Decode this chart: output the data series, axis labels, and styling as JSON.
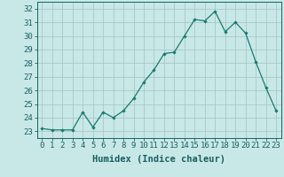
{
  "x": [
    0,
    1,
    2,
    3,
    4,
    5,
    6,
    7,
    8,
    9,
    10,
    11,
    12,
    13,
    14,
    15,
    16,
    17,
    18,
    19,
    20,
    21,
    22,
    23
  ],
  "y": [
    23.2,
    23.1,
    23.1,
    23.1,
    24.4,
    23.3,
    24.4,
    24.0,
    24.5,
    25.4,
    26.6,
    27.5,
    28.7,
    28.8,
    30.0,
    31.2,
    31.1,
    31.8,
    30.3,
    31.0,
    30.2,
    28.1,
    26.2,
    24.5
  ],
  "line_color": "#1a7a6e",
  "marker": "D",
  "marker_size": 2.2,
  "bg_color": "#c8e8e8",
  "grid_color": "#a8c8c8",
  "xlabel": "Humidex (Indice chaleur)",
  "ylim": [
    22.5,
    32.5
  ],
  "xlim": [
    -0.5,
    23.5
  ],
  "yticks": [
    23,
    24,
    25,
    26,
    27,
    28,
    29,
    30,
    31,
    32
  ],
  "xticks": [
    0,
    1,
    2,
    3,
    4,
    5,
    6,
    7,
    8,
    9,
    10,
    11,
    12,
    13,
    14,
    15,
    16,
    17,
    18,
    19,
    20,
    21,
    22,
    23
  ],
  "tick_color": "#1a5f5f",
  "label_color": "#1a5f5f",
  "axis_color": "#1a5f5f",
  "xlabel_fontsize": 7.5,
  "tick_fontsize": 6.5
}
